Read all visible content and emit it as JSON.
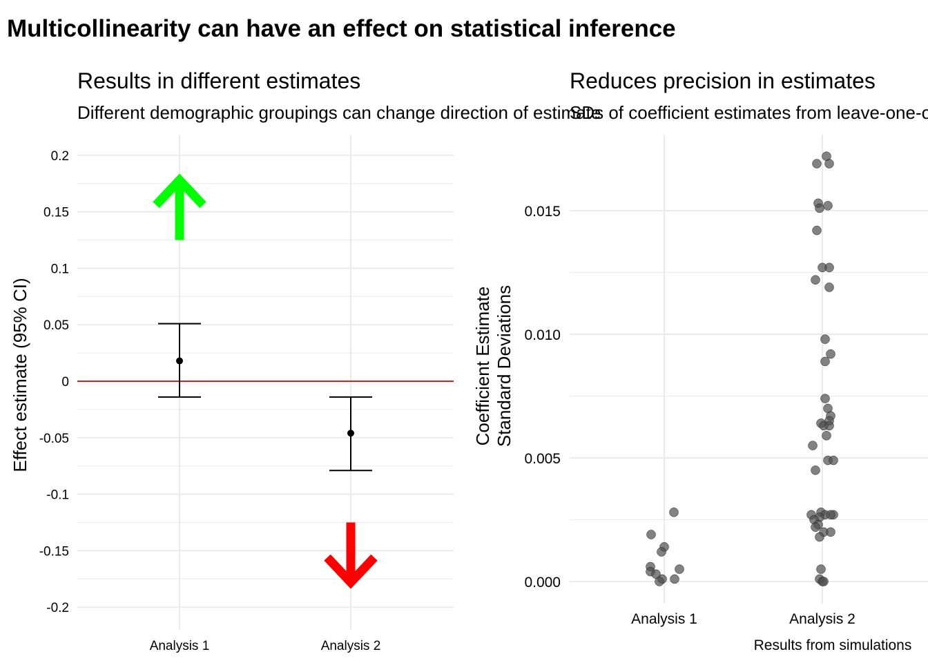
{
  "title": "Multicollinearity can have an effect on statistical inference",
  "colors": {
    "grid": "#ebebeb",
    "zero_line": "#e41a1c",
    "up_arrow": "#00ff00",
    "down_arrow": "#ff0000",
    "point": "#000000",
    "scatter_point": "#4d4d4d"
  },
  "chart_data": [
    {
      "type": "errorbar",
      "title": "Results in different estimates",
      "subtitle": "Different demographic groupings can change direction of estimate",
      "xlabel": "",
      "ylabel": "Effect estimate (95% CI)",
      "categories": [
        "Analysis 1",
        "Analysis 2"
      ],
      "estimates": [
        0.018,
        -0.046
      ],
      "ci_lower": [
        -0.014,
        -0.079
      ],
      "ci_upper": [
        0.051,
        -0.014
      ],
      "ylim": [
        -0.21,
        0.21
      ],
      "yticks": [
        0.2,
        0.15,
        0.1,
        0.05,
        0,
        -0.05,
        -0.1,
        -0.15,
        -0.2
      ],
      "ytick_labels": [
        "0.2",
        "0.15",
        "0.1",
        "0.05",
        "0",
        "-0.05",
        "-0.1",
        "-0.15",
        "-0.2"
      ],
      "reference_line": 0,
      "annotations": [
        {
          "category": "Analysis 1",
          "direction": "up",
          "icon": "up-arrow-icon",
          "color": "#00ff00",
          "y_from": 0.125,
          "y_to": 0.178
        },
        {
          "category": "Analysis 2",
          "direction": "down",
          "icon": "down-arrow-icon",
          "color": "#ff0000",
          "y_from": -0.125,
          "y_to": -0.178
        }
      ],
      "grid": true,
      "legend": "none"
    },
    {
      "type": "scatter",
      "title": "Reduces precision in estimates",
      "subtitle": "SDs of coefficient estimates from leave-one-out simulations",
      "xlabel": "Results from simulations",
      "ylabel": "Coefficient Estimate\nStandard Deviations",
      "ylabel_lines": [
        "Coefficient Estimate",
        "Standard Deviations"
      ],
      "categories": [
        "Analysis 1",
        "Analysis 2"
      ],
      "ylim": [
        -0.0005,
        0.0175
      ],
      "yticks": [
        0,
        0.005,
        0.01,
        0.015
      ],
      "ytick_labels": [
        "0.000",
        "0.005",
        "0.010",
        "0.015"
      ],
      "series": [
        {
          "category": "Analysis 1",
          "points": [
            {
              "x": 1.08,
              "y": 0.0028
            },
            {
              "x": -0.09,
              "y": 0.0019
            },
            {
              "x": 0.01,
              "y": 0.0014
            },
            {
              "x": -0.02,
              "y": 0.0012
            },
            {
              "x": -0.09,
              "y": 0.0006
            },
            {
              "x": 0.1,
              "y": 0.0005
            },
            {
              "x": -0.09,
              "y": 0.0004
            },
            {
              "x": -0.05,
              "y": 0.0003
            },
            {
              "x": -0.01,
              "y": 0.0001
            },
            {
              "x": 0.07,
              "y": 0.0001
            },
            {
              "x": -0.03,
              "y": 0.0
            }
          ],
          "values": [
            0.0028,
            0.0019,
            0.0014,
            0.0012,
            0.0006,
            0.0005,
            0.0004,
            0.0003,
            0.0001,
            0.0001,
            0.0
          ]
        },
        {
          "category": "Analysis 2",
          "values": [
            0.0172,
            0.0169,
            0.0169,
            0.0153,
            0.0151,
            0.0152,
            0.0142,
            0.0127,
            0.0127,
            0.0122,
            0.0119,
            0.0098,
            0.0092,
            0.0089,
            0.0074,
            0.007,
            0.0067,
            0.0065,
            0.0064,
            0.0063,
            0.0063,
            0.0059,
            0.0055,
            0.0049,
            0.0049,
            0.0045,
            0.0028,
            0.0027,
            0.0027,
            0.0027,
            0.0027,
            0.0026,
            0.0025,
            0.0023,
            0.0022,
            0.002,
            0.002,
            0.0018,
            0.0005,
            0.0001,
            0.0,
            0.0
          ]
        }
      ],
      "grid": true,
      "legend": "none"
    }
  ]
}
